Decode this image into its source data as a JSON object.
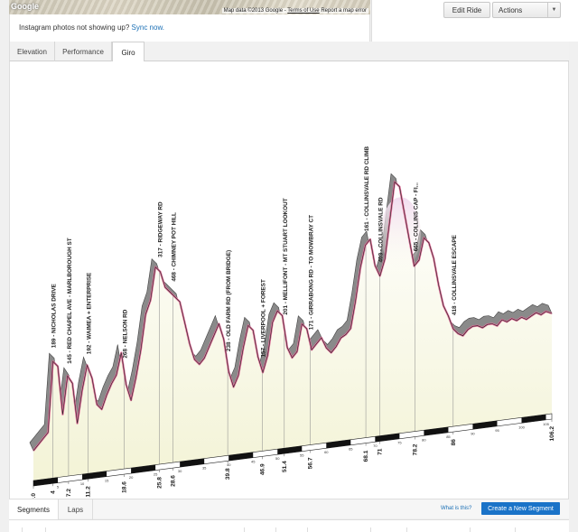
{
  "map": {
    "brand": "Google",
    "attribution": "Map data ©2013 Google",
    "terms": "Terms of Use",
    "report": "Report a map error"
  },
  "instagram": {
    "message": "Instagram photos not showing up?",
    "link": "Sync now."
  },
  "header_buttons": {
    "edit": "Edit Ride",
    "actions": "Actions"
  },
  "tabs": [
    {
      "label": "Elevation",
      "active": false
    },
    {
      "label": "Performance",
      "active": false
    },
    {
      "label": "Giro",
      "active": true
    }
  ],
  "bottom_tabs": [
    {
      "label": "Segments",
      "active": true
    },
    {
      "label": "Laps",
      "active": false
    }
  ],
  "segments": {
    "help_link": "What is this?",
    "create_button": "Create a New Segment"
  },
  "chart_data": {
    "type": "area",
    "style": "giro-profile",
    "colors": {
      "outline": "#e0709a",
      "fill_bottom": "#f6f6dc",
      "fill_top": "#ffffff",
      "wall": "#8a8a8a",
      "peak_tint": "#f2dff0"
    },
    "distance_max": 106.2,
    "profile": [
      [
        0,
        0.1
      ],
      [
        1,
        0.12
      ],
      [
        2,
        0.14
      ],
      [
        3,
        0.16
      ],
      [
        4,
        0.42
      ],
      [
        5,
        0.4
      ],
      [
        6,
        0.22
      ],
      [
        7,
        0.36
      ],
      [
        8,
        0.33
      ],
      [
        9,
        0.18
      ],
      [
        10,
        0.3
      ],
      [
        11,
        0.39
      ],
      [
        12,
        0.34
      ],
      [
        13,
        0.24
      ],
      [
        14,
        0.22
      ],
      [
        15,
        0.27
      ],
      [
        16,
        0.31
      ],
      [
        17,
        0.34
      ],
      [
        18,
        0.42
      ],
      [
        19,
        0.3
      ],
      [
        20,
        0.24
      ],
      [
        21,
        0.32
      ],
      [
        22,
        0.42
      ],
      [
        23,
        0.55
      ],
      [
        24,
        0.6
      ],
      [
        25,
        0.72
      ],
      [
        26,
        0.7
      ],
      [
        27,
        0.64
      ],
      [
        28,
        0.62
      ],
      [
        29,
        0.6
      ],
      [
        30,
        0.58
      ],
      [
        31,
        0.5
      ],
      [
        32,
        0.42
      ],
      [
        33,
        0.36
      ],
      [
        34,
        0.34
      ],
      [
        35,
        0.36
      ],
      [
        36,
        0.4
      ],
      [
        37,
        0.44
      ],
      [
        38,
        0.48
      ],
      [
        39,
        0.42
      ],
      [
        40,
        0.3
      ],
      [
        41,
        0.24
      ],
      [
        42,
        0.28
      ],
      [
        43,
        0.38
      ],
      [
        44,
        0.46
      ],
      [
        45,
        0.44
      ],
      [
        46,
        0.34
      ],
      [
        47,
        0.28
      ],
      [
        48,
        0.34
      ],
      [
        49,
        0.46
      ],
      [
        50,
        0.5
      ],
      [
        51,
        0.48
      ],
      [
        52,
        0.36
      ],
      [
        53,
        0.32
      ],
      [
        54,
        0.34
      ],
      [
        55,
        0.44
      ],
      [
        56,
        0.42
      ],
      [
        57,
        0.34
      ],
      [
        58,
        0.36
      ],
      [
        59,
        0.38
      ],
      [
        60,
        0.34
      ],
      [
        61,
        0.32
      ],
      [
        62,
        0.34
      ],
      [
        63,
        0.37
      ],
      [
        64,
        0.38
      ],
      [
        65,
        0.4
      ],
      [
        66,
        0.5
      ],
      [
        67,
        0.62
      ],
      [
        68,
        0.7
      ],
      [
        69,
        0.72
      ],
      [
        70,
        0.62
      ],
      [
        71,
        0.58
      ],
      [
        72,
        0.64
      ],
      [
        73,
        0.78
      ],
      [
        74,
        0.92
      ],
      [
        75,
        0.9
      ],
      [
        76,
        0.8
      ],
      [
        77,
        0.7
      ],
      [
        78,
        0.6
      ],
      [
        79,
        0.62
      ],
      [
        80,
        0.7
      ],
      [
        81,
        0.68
      ],
      [
        82,
        0.62
      ],
      [
        83,
        0.52
      ],
      [
        84,
        0.44
      ],
      [
        85,
        0.4
      ],
      [
        86,
        0.35
      ],
      [
        87,
        0.33
      ],
      [
        88,
        0.32
      ],
      [
        89,
        0.34
      ],
      [
        90,
        0.35
      ],
      [
        91,
        0.35
      ],
      [
        92,
        0.34
      ],
      [
        93,
        0.35
      ],
      [
        94,
        0.35
      ],
      [
        95,
        0.34
      ],
      [
        96,
        0.36
      ],
      [
        97,
        0.35
      ],
      [
        98,
        0.36
      ],
      [
        99,
        0.35
      ],
      [
        100,
        0.36
      ],
      [
        101,
        0.35
      ],
      [
        102,
        0.36
      ],
      [
        103,
        0.37
      ],
      [
        104,
        0.36
      ],
      [
        105,
        0.37
      ],
      [
        106.2,
        0.36
      ]
    ],
    "climbs": [
      {
        "km": 4,
        "label": "189 - NICHOLAS DRIVE"
      },
      {
        "km": 7.2,
        "label": "145 - RED CHAPEL AVE - MARLBOROUGH ST"
      },
      {
        "km": 11.2,
        "label": "192 - WAIMEA + ENTERPRISE"
      },
      {
        "km": 18.6,
        "label": "268 - NELSON RD"
      },
      {
        "km": 25.8,
        "label": "317 - RIDGEWAY RD"
      },
      {
        "km": 28.6,
        "label": "468 - CHIMNEY POT HILL"
      },
      {
        "km": 39.8,
        "label": "238 - OLD FARM RD (FROM BRIDGE)"
      },
      {
        "km": 46.9,
        "label": "157 - LIVERPOOL + FOREST"
      },
      {
        "km": 51.4,
        "label": "201 - MELLIFONT - MT STUART LOOKOUT"
      },
      {
        "km": 56.7,
        "label": "171 - GIRRABONG RD - TO MOWBRAY CT"
      },
      {
        "km": 68.1,
        "label": "161 - COLLINSVALE RD CLIMB"
      },
      {
        "km": 71,
        "label": "403 - COLLINSVALE RD"
      },
      {
        "km": 78.2,
        "label": "665 - COLLINS CAP - FI..."
      },
      {
        "km": 86,
        "label": "418 - COLLINSVALE ESCAPE"
      }
    ],
    "distance_labels": [
      "0.0",
      "4",
      "7.2",
      "11.2",
      "18.6",
      "25.8",
      "28.6",
      "39.8",
      "46.9",
      "51.4",
      "56.7",
      "68.1",
      "71",
      "78.2",
      "86",
      "106.2"
    ],
    "distance_label_km": [
      0,
      4,
      7.2,
      11.2,
      18.6,
      25.8,
      28.6,
      39.8,
      46.9,
      51.4,
      56.7,
      68.1,
      71,
      78.2,
      86,
      106.2
    ],
    "scale_ticks": [
      5,
      10,
      15,
      20,
      25,
      30,
      35,
      40,
      45,
      50,
      55,
      60,
      65,
      70,
      75,
      80,
      85,
      90,
      95,
      100,
      105
    ]
  }
}
